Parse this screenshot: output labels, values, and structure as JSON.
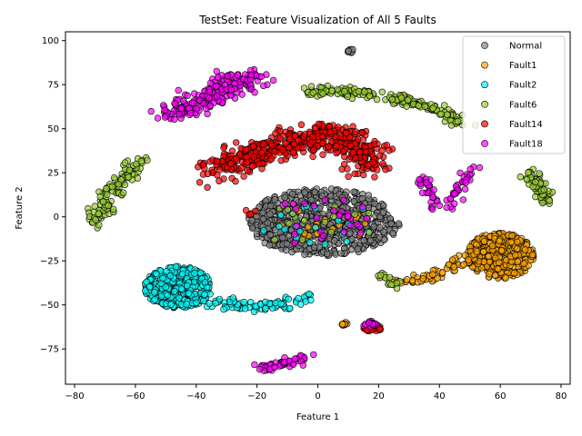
{
  "chart_data": {
    "type": "scatter",
    "title": "TestSet: Feature Visualization of All 5 Faults",
    "xlabel": "Feature 1",
    "ylabel": "Feature 2",
    "xlim": [
      -83,
      83
    ],
    "ylim": [
      -95,
      105
    ],
    "xticks": [
      -80,
      -60,
      -40,
      -20,
      0,
      20,
      40,
      60,
      80
    ],
    "yticks": [
      -75,
      -50,
      -25,
      0,
      25,
      50,
      75,
      100
    ],
    "legend_position": "top-right",
    "grid": false,
    "series": [
      {
        "name": "Normal",
        "color": "#808080",
        "clusters": [
          {
            "kind": "blob",
            "center": [
              2,
              -3
            ],
            "radius": [
              25,
              19
            ],
            "count": 700
          },
          {
            "kind": "blob",
            "center": [
              11,
              94
            ],
            "radius": [
              1.5,
              1
            ],
            "count": 8
          }
        ]
      },
      {
        "name": "Fault1",
        "color": "#ffa500",
        "clusters": [
          {
            "kind": "blob",
            "center": [
              60,
              -22
            ],
            "radius": [
              11,
              13
            ],
            "count": 380
          },
          {
            "kind": "curve",
            "path": [
              [
                24,
                -35
              ],
              [
                32,
                -36
              ],
              [
                40,
                -32
              ],
              [
                48,
                -24
              ],
              [
                52,
                -20
              ]
            ],
            "thickness": 1.5,
            "count": 70
          },
          {
            "kind": "blob",
            "center": [
              8.5,
              -61
            ],
            "radius": [
              1.2,
              1.5
            ],
            "count": 10
          },
          {
            "kind": "blob",
            "center": [
              0,
              -5
            ],
            "radius": [
              17,
              10
            ],
            "count": 18
          }
        ]
      },
      {
        "name": "Fault2",
        "color": "#00ffff",
        "clusters": [
          {
            "kind": "blob",
            "center": [
              -46,
              -40
            ],
            "radius": [
              11,
              12
            ],
            "count": 420
          },
          {
            "kind": "curve",
            "path": [
              [
                -38,
                -47
              ],
              [
                -30,
                -49
              ],
              [
                -20,
                -51
              ],
              [
                -10,
                -50
              ],
              [
                -4,
                -45
              ]
            ],
            "thickness": 1.8,
            "count": 90
          },
          {
            "kind": "blob",
            "center": [
              0,
              -5
            ],
            "radius": [
              20,
              14
            ],
            "count": 20
          }
        ]
      },
      {
        "name": "Fault6",
        "color": "#9acd32",
        "clusters": [
          {
            "kind": "curve",
            "path": [
              [
                -5,
                71
              ],
              [
                5,
                72
              ],
              [
                15,
                71
              ],
              [
                25,
                67
              ],
              [
                35,
                63
              ],
              [
                45,
                55
              ],
              [
                48,
                52
              ]
            ],
            "thickness": 1.6,
            "count": 170
          },
          {
            "kind": "curve",
            "path": [
              [
                -74,
                -3
              ],
              [
                -70,
                5
              ],
              [
                -67,
                17
              ],
              [
                -62,
                27
              ],
              [
                -58,
                32
              ]
            ],
            "thickness": 1.8,
            "count": 110
          },
          {
            "kind": "curve",
            "path": [
              [
                69,
                26
              ],
              [
                72,
                20
              ],
              [
                74,
                13
              ],
              [
                74,
                7
              ]
            ],
            "thickness": 1.5,
            "count": 60
          },
          {
            "kind": "curve",
            "path": [
              [
                21,
                -32
              ],
              [
                24,
                -36
              ],
              [
                27,
                -40
              ]
            ],
            "thickness": 1.2,
            "count": 15
          },
          {
            "kind": "blob",
            "center": [
              0,
              -5
            ],
            "radius": [
              20,
              14
            ],
            "count": 15
          }
        ]
      },
      {
        "name": "Fault14",
        "color": "#ff0000",
        "clusters": [
          {
            "kind": "curve",
            "path": [
              [
                -36,
                26
              ],
              [
                -28,
                31
              ],
              [
                -18,
                37
              ],
              [
                -8,
                42
              ],
              [
                2,
                45
              ],
              [
                8,
                46
              ],
              [
                14,
                38
              ],
              [
                17,
                28
              ]
            ],
            "thickness": 4,
            "count": 480
          },
          {
            "kind": "blob",
            "center": [
              18,
              -63
            ],
            "radius": [
              3,
              2
            ],
            "count": 30
          },
          {
            "kind": "blob",
            "center": [
              -22,
              3
            ],
            "radius": [
              2,
              2
            ],
            "count": 4
          }
        ]
      },
      {
        "name": "Fault18",
        "color": "#ff00ff",
        "clusters": [
          {
            "kind": "curve",
            "path": [
              [
                -49,
                57
              ],
              [
                -42,
                63
              ],
              [
                -34,
                70
              ],
              [
                -27,
                77
              ],
              [
                -20,
                78
              ]
            ],
            "thickness": 3,
            "count": 230
          },
          {
            "kind": "curve",
            "path": [
              [
                -21,
                -86
              ],
              [
                -14,
                -85
              ],
              [
                -6,
                -81
              ],
              [
                -3,
                -79
              ]
            ],
            "thickness": 1.3,
            "count": 50
          },
          {
            "kind": "curve",
            "path": [
              [
                35,
                24
              ],
              [
                36,
                17
              ],
              [
                38,
                10
              ],
              [
                38,
                5
              ]
            ],
            "thickness": 1.4,
            "count": 30
          },
          {
            "kind": "curve",
            "path": [
              [
                43,
                4
              ],
              [
                45,
                12
              ],
              [
                48,
                20
              ],
              [
                51,
                27
              ]
            ],
            "thickness": 1.3,
            "count": 35
          },
          {
            "kind": "blob",
            "center": [
              17,
              -61
            ],
            "radius": [
              2.5,
              2
            ],
            "count": 20
          },
          {
            "kind": "blob",
            "center": [
              2,
              -3
            ],
            "radius": [
              20,
              14
            ],
            "count": 30
          }
        ]
      }
    ]
  }
}
